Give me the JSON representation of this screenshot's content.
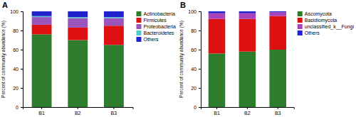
{
  "chart_data": [
    {
      "type": "bar",
      "stacked": true,
      "title": "A",
      "ylabel": "Percent of community abundance (%)",
      "categories": [
        "B1",
        "B2",
        "B3"
      ],
      "series": [
        {
          "name": "Actinobacteria",
          "color": "#2d7d2d",
          "values": [
            76,
            70,
            65
          ]
        },
        {
          "name": "Firmicutes",
          "color": "#dd1111",
          "values": [
            10,
            13,
            20
          ]
        },
        {
          "name": "Proteobacteria",
          "color": "#9955bb",
          "values": [
            8,
            10,
            8
          ]
        },
        {
          "name": "Bacteroidetes",
          "color": "#55cccc",
          "values": [
            1,
            1,
            1
          ]
        },
        {
          "name": "Others",
          "color": "#2222cc",
          "values": [
            5,
            6,
            6
          ]
        }
      ],
      "ylim": [
        0,
        100
      ],
      "yticks": [
        0,
        20,
        40,
        60,
        80,
        100
      ],
      "legend": "upper right"
    },
    {
      "type": "bar",
      "stacked": true,
      "title": "B",
      "ylabel": "Percent of community abundance (%)",
      "categories": [
        "B1",
        "B2",
        "B3"
      ],
      "series": [
        {
          "name": "Ascomycota",
          "color": "#2d7d2d",
          "values": [
            56,
            58,
            60
          ]
        },
        {
          "name": "Basidiomycota",
          "color": "#dd1111",
          "values": [
            36,
            34,
            35
          ]
        },
        {
          "name": "unclassified_k__Fungi",
          "color": "#aa44bb",
          "values": [
            6,
            6,
            4
          ]
        },
        {
          "name": "Others",
          "color": "#2222cc",
          "values": [
            2,
            2,
            1
          ]
        }
      ],
      "ylim": [
        0,
        100
      ],
      "yticks": [
        0,
        20,
        40,
        60,
        80,
        100
      ],
      "legend": "upper right"
    }
  ]
}
